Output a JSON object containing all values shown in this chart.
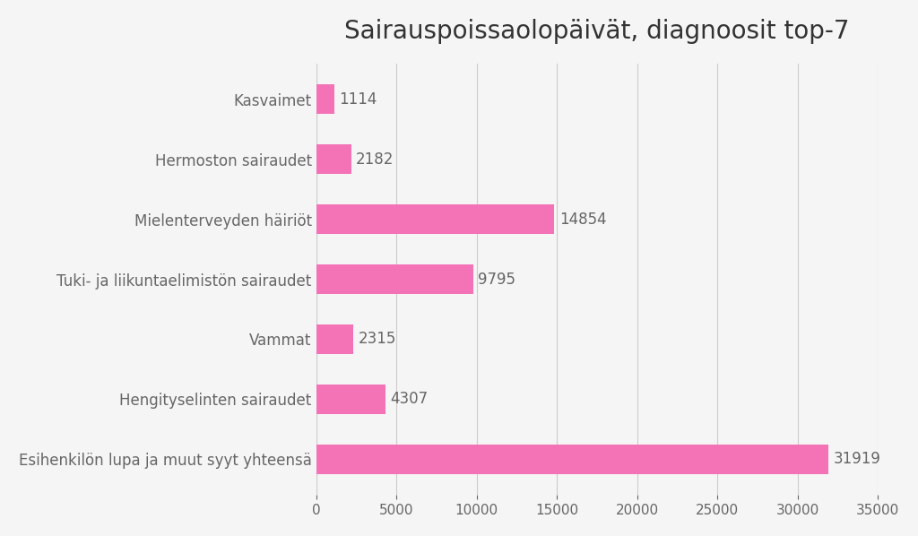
{
  "title": "Sairauspoissaolopäivät, diagnoosit top-7",
  "categories": [
    "Esihenkilön lupa ja muut syyt yhteensä",
    "Hengityselinten sairaudet",
    "Vammat",
    "Tuki- ja liikuntaelimistön sairaudet",
    "Mielenterveyden häiriöt",
    "Hermoston sairaudet",
    "Kasvaimet"
  ],
  "values": [
    31919,
    4307,
    2315,
    9795,
    14854,
    2182,
    1114
  ],
  "bar_color": "#F472B6",
  "label_color": "#666666",
  "title_color": "#333333",
  "background_color": "#f5f5f5",
  "xlim": [
    0,
    35000
  ],
  "xticks": [
    0,
    5000,
    10000,
    15000,
    20000,
    25000,
    30000,
    35000
  ],
  "title_fontsize": 20,
  "label_fontsize": 12,
  "value_fontsize": 12,
  "tick_fontsize": 11
}
